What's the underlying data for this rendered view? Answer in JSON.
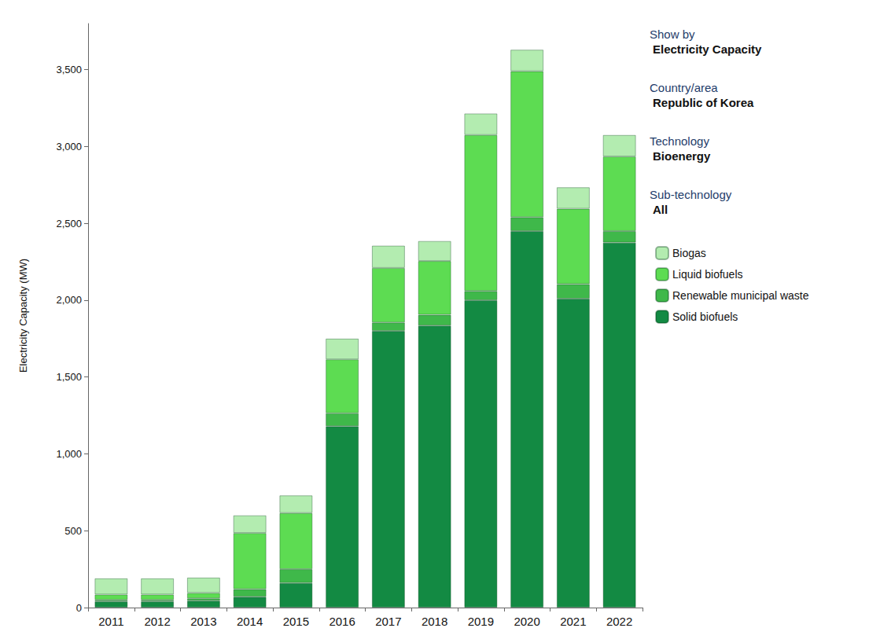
{
  "chart_data": {
    "type": "bar",
    "stacked": true,
    "ylabel": "Electricity Capacity (MW)",
    "categories": [
      "2011",
      "2012",
      "2013",
      "2014",
      "2015",
      "2016",
      "2017",
      "2018",
      "2019",
      "2020",
      "2021",
      "2022"
    ],
    "series": [
      {
        "name": "Solid biofuels",
        "color": "#138a43",
        "values": [
          40,
          40,
          45,
          70,
          160,
          1180,
          1800,
          1835,
          2000,
          2450,
          2010,
          2375
        ]
      },
      {
        "name": "Renewable municipal waste",
        "color": "#3fb84a",
        "values": [
          10,
          10,
          15,
          50,
          90,
          85,
          55,
          70,
          60,
          90,
          95,
          75
        ]
      },
      {
        "name": "Liquid biofuels",
        "color": "#5ddc52",
        "values": [
          35,
          35,
          35,
          365,
          365,
          350,
          355,
          350,
          1015,
          950,
          490,
          485
        ]
      },
      {
        "name": "Biogas",
        "color": "#b3ecb0",
        "values": [
          105,
          105,
          100,
          115,
          115,
          135,
          145,
          130,
          140,
          140,
          140,
          140
        ]
      }
    ],
    "ylim": [
      0,
      3800
    ],
    "yticks": [
      0,
      500,
      {
        "value": 1000,
        "label": "1,000"
      },
      {
        "value": 1500,
        "label": "1,500"
      },
      {
        "value": 2000,
        "label": "2,000"
      },
      {
        "value": 2500,
        "label": "2,500"
      },
      {
        "value": 3000,
        "label": "3,000"
      },
      {
        "value": 3500,
        "label": "3,500"
      }
    ],
    "grid": false,
    "legend": "right",
    "annotations": [
      {
        "label": "Show by",
        "value": "Electricity Capacity"
      },
      {
        "label": "Country/area",
        "value": "Republic of Korea"
      },
      {
        "label": "Technology",
        "value": "Bioenergy"
      },
      {
        "label": "Sub-technology",
        "value": "All"
      }
    ]
  }
}
